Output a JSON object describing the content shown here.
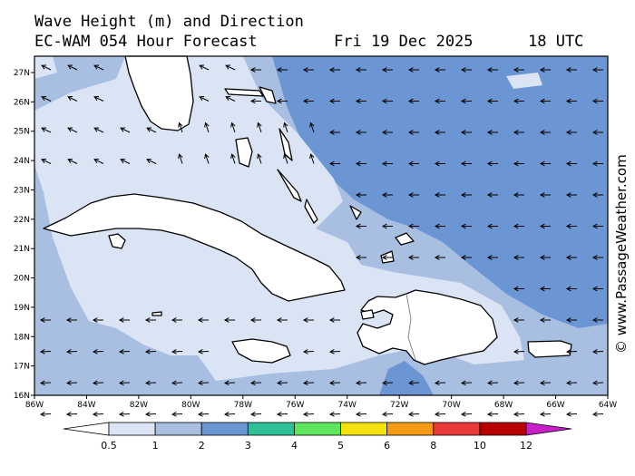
{
  "title": {
    "line1": "Wave Height (m) and Direction",
    "model": "EC-WAM 054 Hour Forecast",
    "date": "Fri 19 Dec 2025",
    "time": "18 UTC"
  },
  "credit": "© www.PassageWeather.com",
  "colors": {
    "lt05": "#ffffff",
    "c05_1": "#dbe4f4",
    "c1_2": "#a8bfe1",
    "c2_3": "#6c95d3",
    "c3_4": "#2ebf97",
    "c4_5": "#5ee65e",
    "c5_6": "#f4e20c",
    "c6_8": "#f59a14",
    "c8_10": "#e83a3a",
    "c10_12": "#b80000",
    "gt12": "#c81ec8",
    "land_outline": "#000000"
  },
  "axes": {
    "lon_labels": [
      "86W",
      "84W",
      "82W",
      "80W",
      "78W",
      "76W",
      "74W",
      "72W",
      "70W",
      "68W",
      "66W",
      "64W"
    ],
    "lat_labels": [
      "27N",
      "26N",
      "25N",
      "24N",
      "23N",
      "22N",
      "21N",
      "20N",
      "19N",
      "18N",
      "17N",
      "16N"
    ]
  },
  "legend": {
    "labels": [
      "0.5",
      "1",
      "2",
      "3",
      "4",
      "5",
      "6",
      "8",
      "10",
      "12"
    ]
  }
}
